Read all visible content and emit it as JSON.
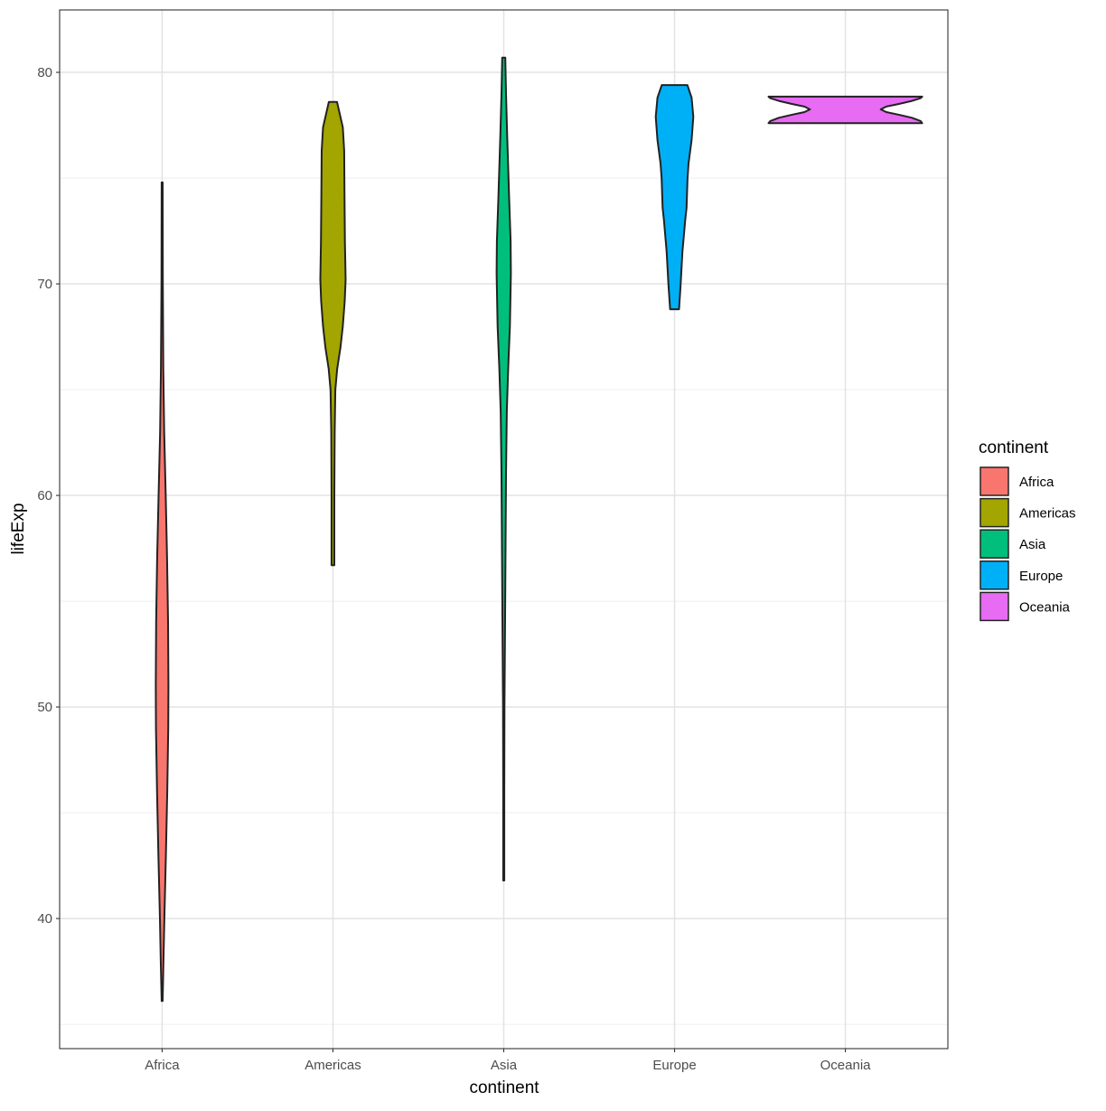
{
  "chart_data": {
    "type": "violin",
    "title": "",
    "xlabel": "continent",
    "ylabel": "lifeExp",
    "ylim": [
      33.85,
      82.95
    ],
    "yticks": [
      40,
      50,
      60,
      70,
      80
    ],
    "yminor": [
      35,
      45,
      55,
      65,
      75
    ],
    "grid": true,
    "categories": [
      "Africa",
      "Americas",
      "Asia",
      "Europe",
      "Oceania"
    ],
    "legend": {
      "title": "continent",
      "placement": "right"
    },
    "series": [
      {
        "name": "Africa",
        "color": "#F8766D",
        "profile": [
          [
            36.1,
            0.003
          ],
          [
            38,
            0.008
          ],
          [
            40,
            0.013
          ],
          [
            43,
            0.022
          ],
          [
            46,
            0.03
          ],
          [
            49,
            0.036
          ],
          [
            51,
            0.037
          ],
          [
            54,
            0.035
          ],
          [
            57,
            0.029
          ],
          [
            60,
            0.021
          ],
          [
            63,
            0.012
          ],
          [
            66,
            0.007
          ],
          [
            70,
            0.004
          ],
          [
            74.8,
            0.003
          ]
        ]
      },
      {
        "name": "Americas",
        "color": "#A3A500",
        "profile": [
          [
            56.7,
            0.008
          ],
          [
            60,
            0.008
          ],
          [
            63,
            0.01
          ],
          [
            65,
            0.014
          ],
          [
            66,
            0.025
          ],
          [
            67,
            0.044
          ],
          [
            68,
            0.058
          ],
          [
            69.2,
            0.069
          ],
          [
            70.2,
            0.074
          ],
          [
            72,
            0.07
          ],
          [
            74,
            0.068
          ],
          [
            76.3,
            0.066
          ],
          [
            77.4,
            0.058
          ],
          [
            78.6,
            0.024
          ]
        ]
      },
      {
        "name": "Asia",
        "color": "#00BF7D",
        "profile": [
          [
            41.8,
            0.003
          ],
          [
            46,
            0.003
          ],
          [
            50,
            0.004
          ],
          [
            53,
            0.007
          ],
          [
            57,
            0.01
          ],
          [
            61,
            0.013
          ],
          [
            64,
            0.018
          ],
          [
            66,
            0.026
          ],
          [
            68,
            0.036
          ],
          [
            70.5,
            0.042
          ],
          [
            72,
            0.04
          ],
          [
            74,
            0.032
          ],
          [
            77,
            0.02
          ],
          [
            79,
            0.013
          ],
          [
            80.7,
            0.009
          ]
        ]
      },
      {
        "name": "Europe",
        "color": "#00B0F6",
        "profile": [
          [
            68.8,
            0.026
          ],
          [
            70,
            0.036
          ],
          [
            71.5,
            0.046
          ],
          [
            73,
            0.062
          ],
          [
            73.6,
            0.07
          ],
          [
            75,
            0.076
          ],
          [
            75.7,
            0.082
          ],
          [
            76.8,
            0.1
          ],
          [
            77.9,
            0.11
          ],
          [
            78.8,
            0.1
          ],
          [
            79.4,
            0.075
          ]
        ]
      },
      {
        "name": "Oceania",
        "color": "#E76BF3",
        "profile": [
          [
            77.6,
            0.45
          ],
          [
            77.7,
            0.44
          ],
          [
            77.85,
            0.39
          ],
          [
            78.0,
            0.31
          ],
          [
            78.12,
            0.24
          ],
          [
            78.25,
            0.207
          ],
          [
            78.38,
            0.24
          ],
          [
            78.5,
            0.31
          ],
          [
            78.65,
            0.39
          ],
          [
            78.78,
            0.44
          ],
          [
            78.85,
            0.45
          ]
        ]
      }
    ]
  }
}
